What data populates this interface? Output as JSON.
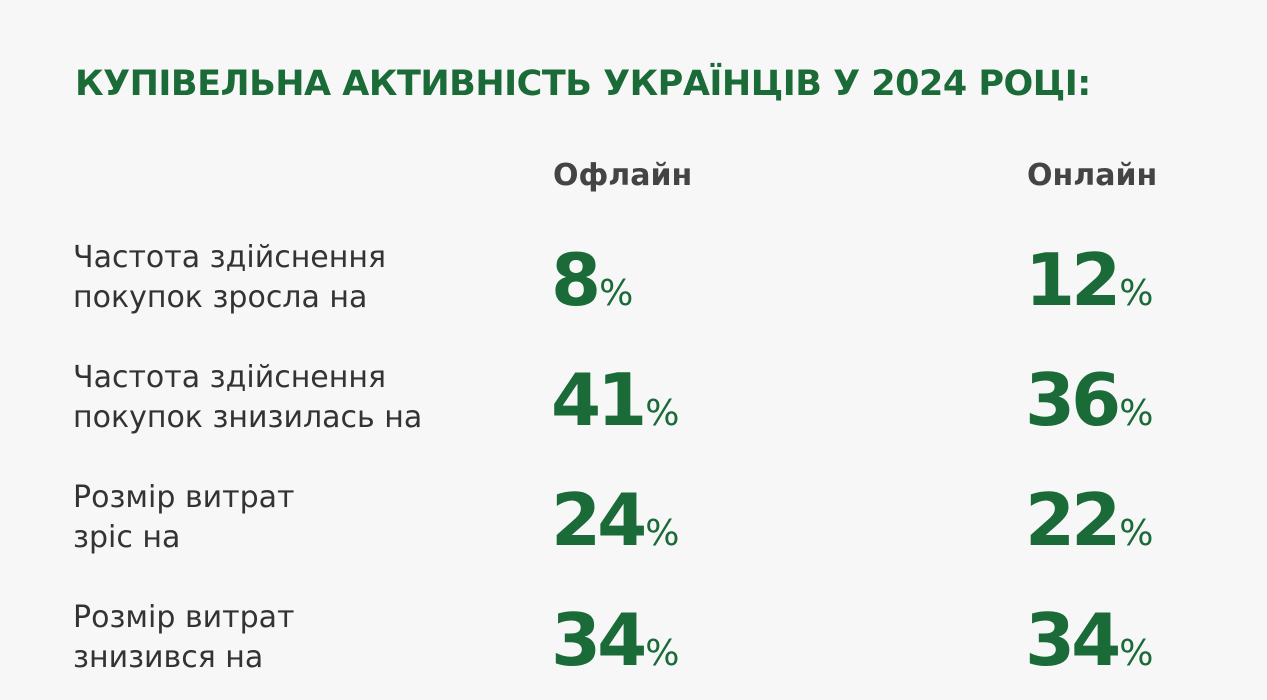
{
  "chart_data": {
    "type": "table",
    "title": "КУПІВЕЛЬНА АКТИВНІСТЬ УКРАЇНЦІВ У 2024 РОЦІ:",
    "columns": [
      "Офлайн",
      "Онлайн"
    ],
    "unit": "%",
    "rows": [
      {
        "label": "Частота здійснення\nпокупок зросла на",
        "offline": 8,
        "online": 12
      },
      {
        "label": "Частота здійснення\nпокупок знизилась на",
        "offline": 41,
        "online": 36
      },
      {
        "label": "Розмір витрат\nзріс на",
        "offline": 24,
        "online": 22
      },
      {
        "label": "Розмір витрат\nзнизився на",
        "offline": 34,
        "online": 34
      }
    ]
  },
  "colors": {
    "accent": "#1a6b37",
    "header_text": "#444444",
    "label_text": "#333333",
    "background": "#f7f7f7"
  }
}
